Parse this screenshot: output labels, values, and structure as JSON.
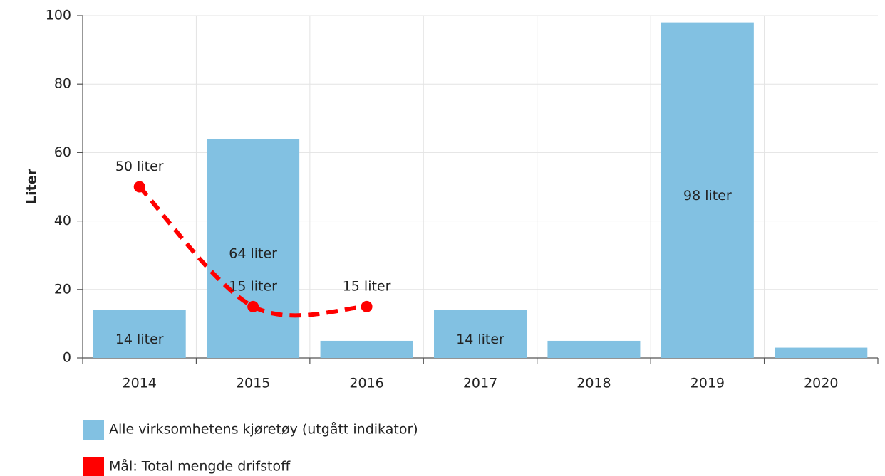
{
  "chart_data": {
    "type": "bar_line",
    "y_label": "Liter",
    "categories": [
      "2014",
      "2015",
      "2016",
      "2017",
      "2018",
      "2019",
      "2020"
    ],
    "series": [
      {
        "name": "Alle virksomhetens kjøretøy (utgått indikator)",
        "type": "bar",
        "color": "#82c1e2",
        "values": [
          14,
          64,
          5,
          14,
          5,
          98,
          3
        ],
        "value_labels": [
          "14 liter",
          "64 liter",
          null,
          "14 liter",
          null,
          "98 liter",
          null
        ]
      },
      {
        "name": "Mål: Total mengde drifstoff",
        "type": "line",
        "color": "#ff0000",
        "values": [
          50,
          15,
          15,
          null,
          null,
          null,
          null
        ],
        "value_labels": [
          "50 liter",
          "15 liter",
          "15 liter",
          null,
          null,
          null,
          null
        ]
      }
    ],
    "ylim": [
      0,
      100
    ],
    "yticks": [
      0,
      20,
      40,
      60,
      80,
      100
    ],
    "grid": true
  }
}
